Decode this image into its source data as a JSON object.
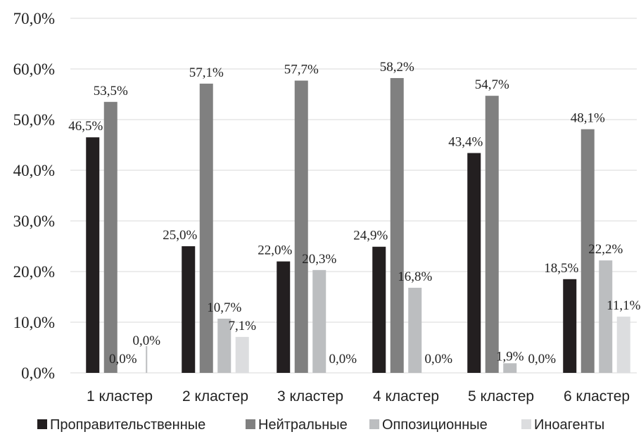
{
  "chart_data": {
    "type": "bar",
    "title": "",
    "xlabel": "",
    "ylabel": "",
    "ylim": [
      0,
      70
    ],
    "y_ticks": [
      "0,0%",
      "10,0%",
      "20,0%",
      "30,0%",
      "40,0%",
      "50,0%",
      "60,0%",
      "70,0%"
    ],
    "grid": true,
    "legend_position": "bottom",
    "categories": [
      "1 кластер",
      "2 кластер",
      "3 кластер",
      "4 кластер",
      "5 кластер",
      "6 кластер"
    ],
    "series": [
      {
        "name": "Проправительственные",
        "color": "#231f20",
        "values": [
          46.5,
          25.0,
          22.0,
          24.9,
          43.4,
          18.5
        ],
        "labels": [
          "46,5%",
          "25,0%",
          "22,0%",
          "24,9%",
          "43,4%",
          "18,5%"
        ]
      },
      {
        "name": "Нейтральные",
        "color": "#808080",
        "values": [
          53.5,
          57.1,
          57.7,
          58.2,
          54.7,
          48.1
        ],
        "labels": [
          "53,5%",
          "57,1%",
          "57,7%",
          "58,2%",
          "54,7%",
          "48,1%"
        ]
      },
      {
        "name": "Оппозиционные",
        "color": "#bcbec0",
        "values": [
          0.0,
          10.7,
          20.3,
          16.8,
          1.9,
          22.2
        ],
        "labels": [
          "0,0%",
          "10,7%",
          "20,3%",
          "16,8%",
          "1,9%",
          "22,2%"
        ]
      },
      {
        "name": "Иноагенты",
        "color": "#dcdddf",
        "values": [
          0.0,
          7.1,
          0.0,
          0.0,
          0.0,
          11.1
        ],
        "labels": [
          "0,0%",
          "7,1%",
          "0,0%",
          "0,0%",
          "0,0%",
          "11,1%"
        ]
      }
    ]
  }
}
